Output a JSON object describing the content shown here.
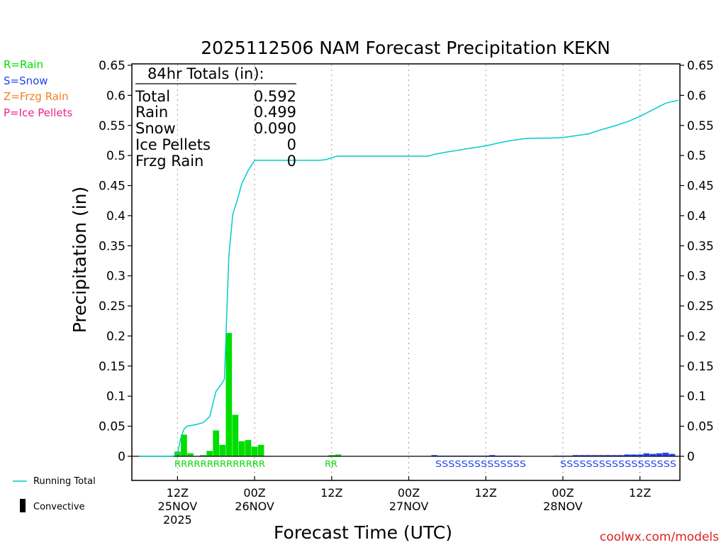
{
  "colors": {
    "rain": "#00dd00",
    "snow": "#2244ee",
    "frzg_rain": "#f08020",
    "ice_pellets": "#ee2288",
    "running_total": "#00cccc",
    "convective": "#000000",
    "credit": "#dd2222"
  },
  "legend": {
    "rain": "R=Rain",
    "snow": "S=Snow",
    "frzg_rain": "Z=Frzg Rain",
    "ice_pellets": "P=Ice Pellets",
    "running_total": "Running Total",
    "convective": "Convective"
  },
  "totals_box": {
    "header": "84hr Totals (in):",
    "rows": [
      {
        "label": "Total",
        "value": "0.592"
      },
      {
        "label": "Rain",
        "value": "0.499"
      },
      {
        "label": "Snow",
        "value": "0.090"
      },
      {
        "label": "Ice Pellets",
        "value": "0"
      },
      {
        "label": "Frzg Rain",
        "value": "0"
      }
    ]
  },
  "credit": "coolwx.com/models",
  "chart_data": {
    "type": "bar",
    "title": "2025112506 NAM Forecast Precipitation KEKN",
    "xlabel": "Forecast Time (UTC)",
    "ylabel": "Precipitation (in)",
    "ylim": [
      0,
      0.65
    ],
    "y_ticks": [
      "0",
      "0.05",
      "0.1",
      "0.15",
      "0.2",
      "0.25",
      "0.3",
      "0.35",
      "0.4",
      "0.45",
      "0.5",
      "0.55",
      "0.6",
      "0.65"
    ],
    "x_unit": "forecast hour",
    "xlim": [
      0,
      84
    ],
    "x_ticks": [
      {
        "hour": 6,
        "labels": [
          "12Z",
          "25NOV",
          "2025"
        ]
      },
      {
        "hour": 18,
        "labels": [
          "00Z",
          "26NOV"
        ]
      },
      {
        "hour": 30,
        "labels": [
          "12Z"
        ]
      },
      {
        "hour": 42,
        "labels": [
          "00Z",
          "27NOV"
        ]
      },
      {
        "hour": 54,
        "labels": [
          "12Z"
        ]
      },
      {
        "hour": 66,
        "labels": [
          "00Z",
          "28NOV"
        ]
      },
      {
        "hour": 78,
        "labels": [
          "12Z"
        ]
      }
    ],
    "grid": "dotted vertical at x ticks",
    "series": [
      {
        "name": "Rain",
        "hours": [
          6,
          7,
          8,
          10,
          11,
          12,
          13,
          14,
          15,
          16,
          17,
          18,
          19,
          30,
          31
        ],
        "values": [
          0.008,
          0.036,
          0.005,
          0.002,
          0.009,
          0.043,
          0.019,
          0.205,
          0.069,
          0.025,
          0.027,
          0.016,
          0.019,
          0.002,
          0.003
        ]
      },
      {
        "name": "Snow",
        "hours": [
          46,
          47,
          48,
          49,
          50,
          51,
          52,
          53,
          54,
          55,
          56,
          57,
          58,
          59,
          65,
          66,
          67,
          68,
          69,
          70,
          71,
          72,
          73,
          74,
          75,
          76,
          77,
          78,
          79,
          80,
          81,
          82,
          83
        ],
        "values": [
          0.002,
          0.001,
          0.001,
          0.001,
          0.001,
          0.001,
          0.001,
          0.001,
          0.001,
          0.002,
          0.001,
          0.001,
          0.001,
          0.001,
          0.001,
          0.001,
          0.001,
          0.002,
          0.002,
          0.002,
          0.002,
          0.002,
          0.002,
          0.002,
          0.002,
          0.003,
          0.003,
          0.003,
          0.005,
          0.004,
          0.005,
          0.006,
          0.004
        ]
      },
      {
        "name": "Running Total",
        "hours": [
          0,
          5,
          5.5,
          6,
          6.5,
          7,
          7.5,
          8,
          9,
          10,
          11,
          12,
          12.7,
          13.3,
          14,
          14.6,
          15.2,
          16,
          17,
          18,
          19,
          20,
          21,
          22,
          23,
          24,
          25,
          26,
          27,
          28,
          29,
          30,
          30.5,
          31,
          33,
          36,
          40,
          45,
          46,
          48,
          51,
          54,
          56,
          58,
          60,
          62,
          64,
          66,
          68,
          70,
          72,
          74,
          76,
          78,
          80,
          82,
          84
        ],
        "values": [
          0,
          0,
          0.001,
          0.005,
          0.03,
          0.045,
          0.05,
          0.051,
          0.053,
          0.056,
          0.066,
          0.108,
          0.118,
          0.128,
          0.333,
          0.402,
          0.422,
          0.453,
          0.475,
          0.492,
          0.492,
          0.492,
          0.492,
          0.492,
          0.492,
          0.492,
          0.492,
          0.492,
          0.492,
          0.492,
          0.493,
          0.496,
          0.498,
          0.499,
          0.499,
          0.499,
          0.499,
          0.499,
          0.502,
          0.506,
          0.511,
          0.516,
          0.521,
          0.525,
          0.528,
          0.529,
          0.529,
          0.53,
          0.533,
          0.536,
          0.543,
          0.549,
          0.556,
          0.565,
          0.576,
          0.587,
          0.592
        ]
      }
    ],
    "type_strips": [
      {
        "letters": "RRRRRRRRRRRRRR",
        "type": "rain"
      },
      {
        "letters": "RR",
        "type": "rain"
      },
      {
        "letters": "SSSSSSSSSSSSSS",
        "type": "snow"
      },
      {
        "letters": "SSSSSSSSSSSSSSSSSS",
        "type": "snow"
      }
    ]
  }
}
